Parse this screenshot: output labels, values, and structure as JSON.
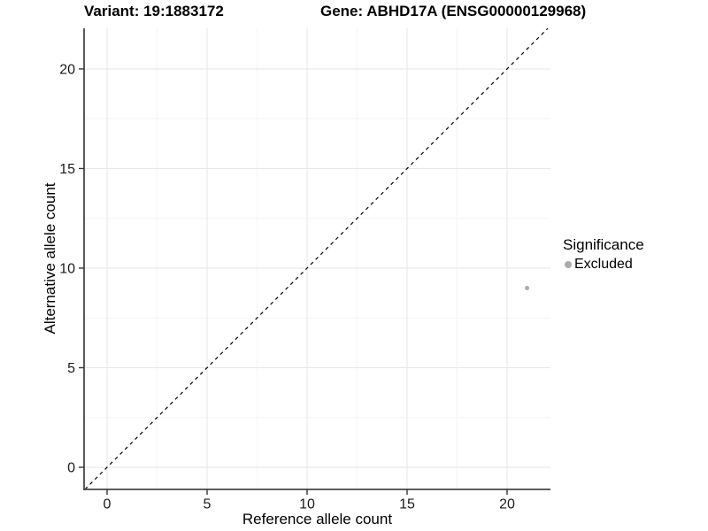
{
  "chart_data": {
    "type": "scatter",
    "titles": {
      "variant": "Variant: 19:1883172",
      "gene": "Gene: ABHD17A (ENSG00000129968)"
    },
    "xlabel": "Reference allele count",
    "ylabel": "Alternative allele count",
    "xlim": [
      -1.15,
      22.17
    ],
    "ylim": [
      -1.11,
      22.04
    ],
    "x_ticks": [
      0,
      5,
      10,
      15,
      20
    ],
    "y_ticks": [
      0,
      5,
      10,
      15,
      20
    ],
    "grid": {
      "major": true,
      "minor": true,
      "major_color": "#e7e7e7",
      "minor_color": "#f3f3f3"
    },
    "identity_line": {
      "shown": true,
      "style": "dashed",
      "color": "#000000"
    },
    "series": [
      {
        "name": "Excluded",
        "color": "#ababab",
        "points": [
          {
            "x": 21,
            "y": 9
          }
        ]
      }
    ],
    "legend": {
      "title": "Significance",
      "position": "right",
      "items": [
        {
          "label": "Excluded",
          "color": "#ababab"
        }
      ]
    },
    "axis_color": "#474747",
    "tick_color": "#333333",
    "text_color": "#1a1a1a"
  }
}
